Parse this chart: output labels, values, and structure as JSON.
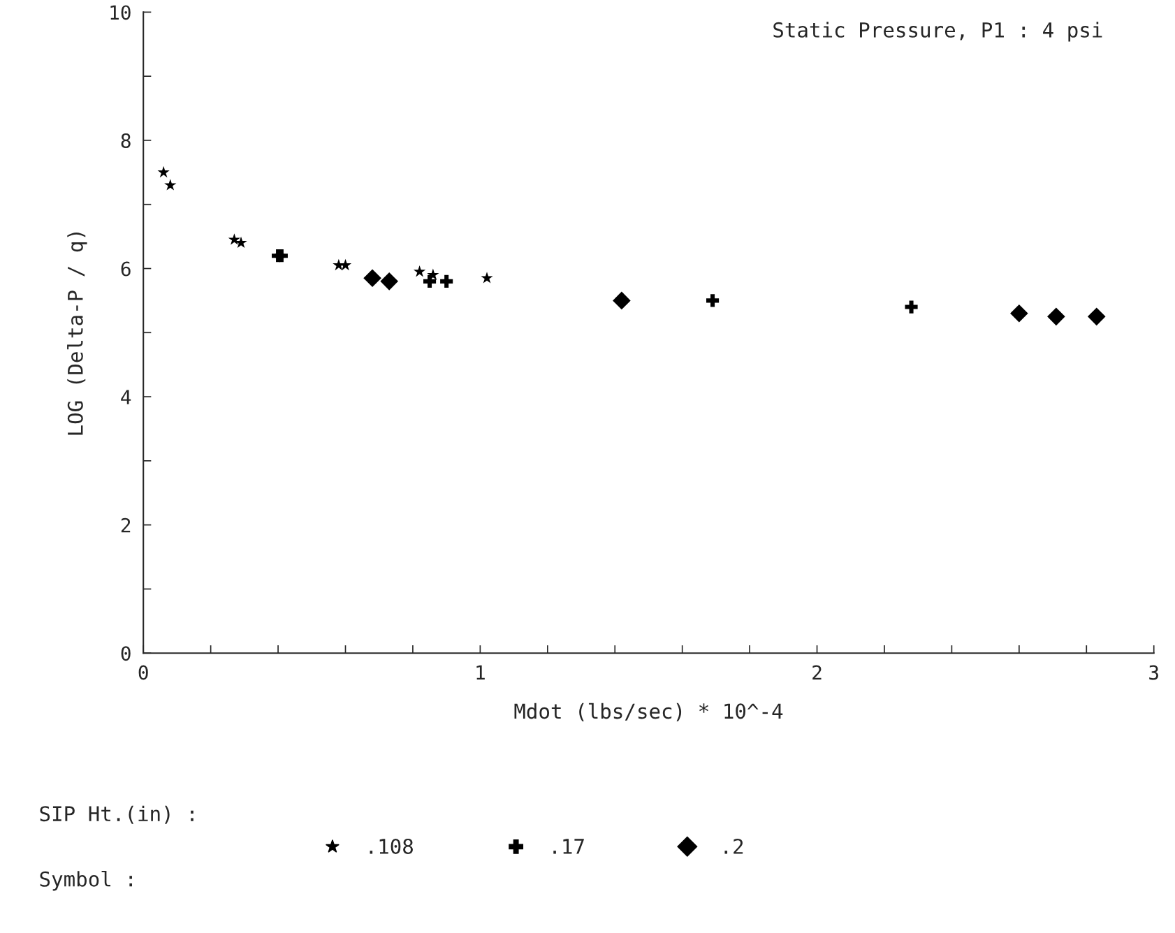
{
  "chart_data": {
    "type": "scatter",
    "title": "Static Pressure, P1 : 4 psi",
    "xlabel": "Mdot (lbs/sec) * 10^-4",
    "ylabel": "LOG (Delta-P / q)",
    "legend_title": "SIP Ht.(in) :",
    "annotations": [
      "Symbol :"
    ],
    "legend": "bottom",
    "xlim": [
      0,
      3
    ],
    "ylim": [
      0,
      10
    ],
    "xticks": [
      0,
      {
        "value": 0.2,
        "label": null
      },
      {
        "value": 0.4,
        "label": null
      },
      {
        "value": 0.6,
        "label": null
      },
      {
        "value": 0.8,
        "label": null
      },
      1,
      {
        "value": 1.2,
        "label": null
      },
      {
        "value": 1.4,
        "label": null
      },
      {
        "value": 1.6,
        "label": null
      },
      {
        "value": 1.8,
        "label": null
      },
      2,
      {
        "value": 2.2,
        "label": null
      },
      {
        "value": 2.4,
        "label": null
      },
      {
        "value": 2.6,
        "label": null
      },
      {
        "value": 2.8,
        "label": null
      },
      3
    ],
    "yticks": [
      0,
      {
        "value": 1,
        "label": null
      },
      2,
      {
        "value": 3,
        "label": null
      },
      4,
      {
        "value": 5,
        "label": null
      },
      6,
      {
        "value": 7,
        "label": null
      },
      8,
      {
        "value": 9,
        "label": null
      },
      10
    ],
    "grid": false,
    "series": [
      {
        "name": ".108",
        "marker": "star",
        "color": "#000000",
        "x": [
          0.06,
          0.08,
          0.27,
          0.29,
          0.58,
          0.6,
          0.82,
          0.86,
          1.02
        ],
        "values": [
          7.5,
          7.3,
          6.45,
          6.4,
          6.05,
          6.05,
          5.95,
          5.9,
          5.85
        ]
      },
      {
        "name": ".17",
        "marker": "cross",
        "color": "#000000",
        "x": [
          0.4,
          0.41,
          0.85,
          0.9,
          1.69,
          2.28
        ],
        "values": [
          6.2,
          6.2,
          5.8,
          5.8,
          5.5,
          5.4
        ]
      },
      {
        "name": ".2",
        "marker": "diamond",
        "color": "#000000",
        "x": [
          0.68,
          0.73,
          1.42,
          2.6,
          2.71,
          2.83
        ],
        "values": [
          5.85,
          5.8,
          5.5,
          5.3,
          5.25,
          5.25
        ]
      }
    ]
  }
}
